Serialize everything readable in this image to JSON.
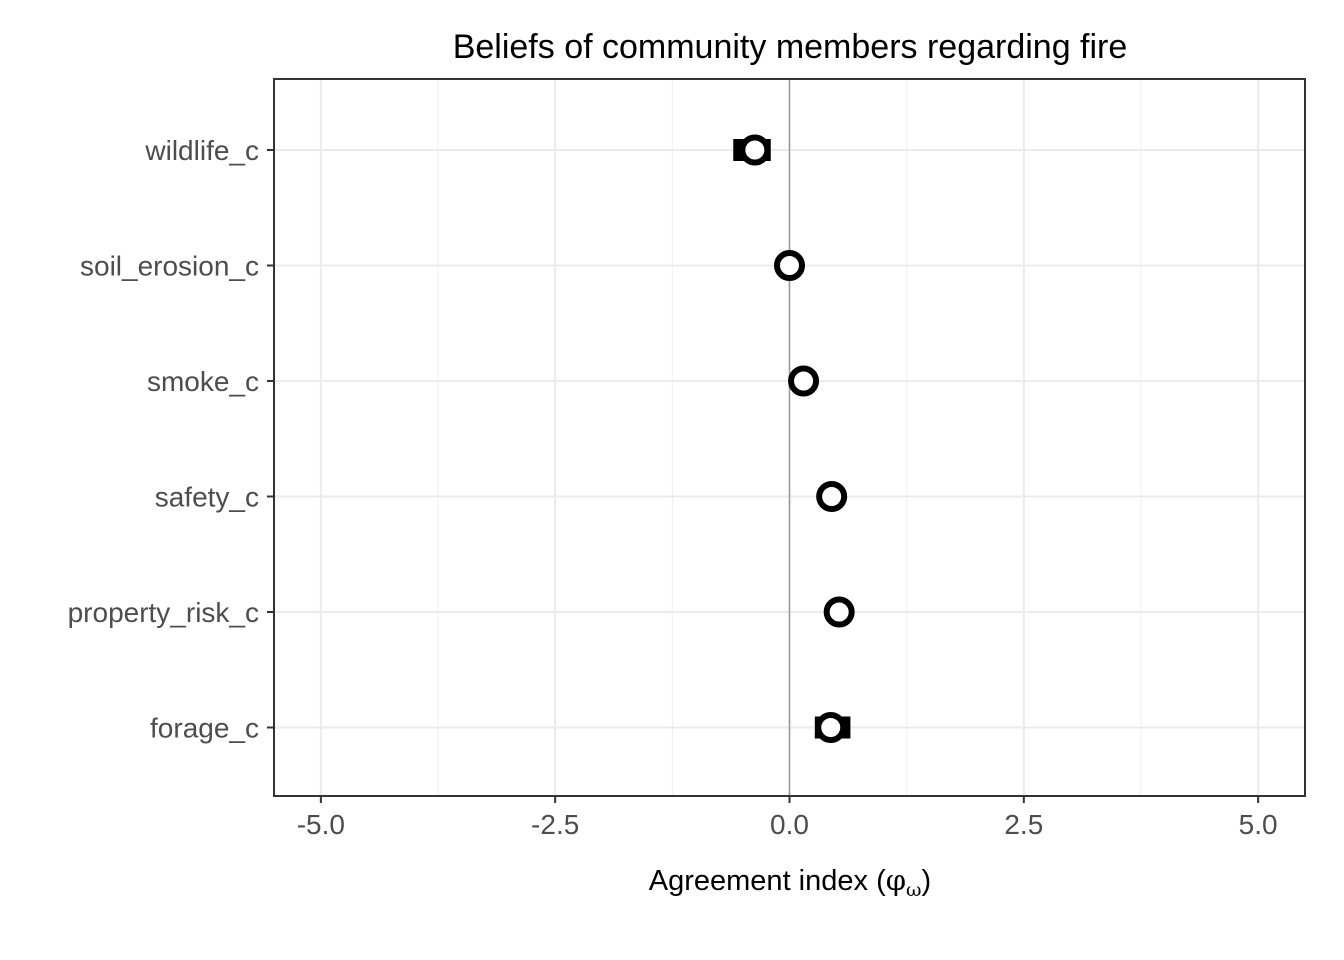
{
  "chart_data": {
    "type": "scatter",
    "title": "Beliefs of community members regarding fire",
    "xlabel": {
      "main": "Agreement index (",
      "symbol": "φ",
      "subscript": "ω",
      "close": ")"
    },
    "ylabel": "",
    "xlim": [
      -5.5,
      5.5
    ],
    "x_ticks": [
      -5.0,
      -2.5,
      0.0,
      2.5,
      5.0
    ],
    "x_tick_labels": [
      "-5.0",
      "-2.5",
      "0.0",
      "2.5",
      "5.0"
    ],
    "categories": [
      "wildlife_c",
      "soil_erosion_c",
      "smoke_c",
      "safety_c",
      "property_risk_c",
      "forage_c"
    ],
    "points": [
      {
        "category": "wildlife_c",
        "x": -0.37,
        "lower": -0.6,
        "upper": -0.2
      },
      {
        "category": "soil_erosion_c",
        "x": 0.0,
        "lower": -0.08,
        "upper": 0.08
      },
      {
        "category": "smoke_c",
        "x": 0.15,
        "lower": 0.08,
        "upper": 0.22
      },
      {
        "category": "safety_c",
        "x": 0.45,
        "lower": 0.35,
        "upper": 0.55
      },
      {
        "category": "property_risk_c",
        "x": 0.53,
        "lower": 0.42,
        "upper": 0.65
      },
      {
        "category": "forage_c",
        "x": 0.44,
        "lower": 0.27,
        "upper": 0.65
      }
    ],
    "reference_line_x": 0,
    "grid": true,
    "legend": "none",
    "colors": {
      "panel_border": "#333333",
      "grid_major": "#ebebeb",
      "grid_minor": "#f2f2f2",
      "reference_line": "#999999",
      "marker": "#000000",
      "marker_fill": "#ffffff"
    }
  }
}
